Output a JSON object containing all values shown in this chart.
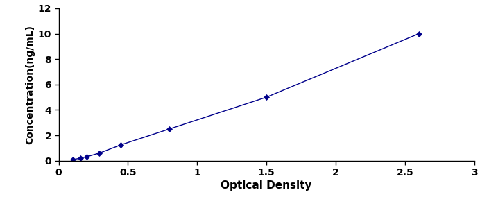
{
  "x": [
    0.1,
    0.156,
    0.2,
    0.294,
    0.45,
    0.8,
    1.5,
    2.6
  ],
  "y": [
    0.078,
    0.2,
    0.3,
    0.6,
    1.25,
    2.5,
    5.0,
    10.0
  ],
  "color": "#00008B",
  "marker": "D",
  "marker_size": 4,
  "line_style": "-",
  "line_width": 1.0,
  "xlabel": "Optical Density",
  "ylabel": "Concentration(ng/mL)",
  "xlim": [
    0,
    3
  ],
  "ylim": [
    0,
    12
  ],
  "xticks": [
    0,
    0.5,
    1,
    1.5,
    2,
    2.5,
    3
  ],
  "xtick_labels": [
    "0",
    "0.5",
    "1",
    "1.5",
    "2",
    "2.5",
    "3"
  ],
  "yticks": [
    0,
    2,
    4,
    6,
    8,
    10,
    12
  ],
  "ytick_labels": [
    "0",
    "2",
    "4",
    "6",
    "8",
    "10",
    "12"
  ],
  "xlabel_fontsize": 11,
  "ylabel_fontsize": 10,
  "tick_fontsize": 10,
  "figure_width": 7.05,
  "figure_height": 2.97,
  "dpi": 100,
  "bg_color": "#ffffff"
}
